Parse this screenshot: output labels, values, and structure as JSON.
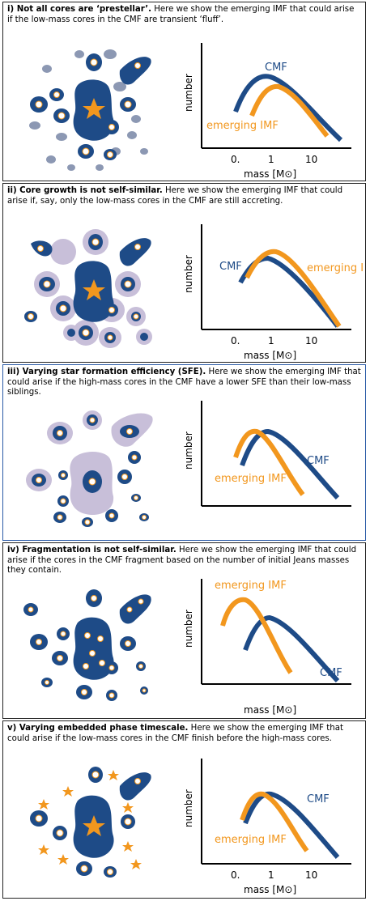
{
  "colors": {
    "blue": "#1e4b87",
    "orange": "#f2971e",
    "grey": "#8c98b3",
    "lilac": "#c8bfd9",
    "border": "#222222",
    "border_blue": "#2a5aa6"
  },
  "axes": {
    "x_label": "mass [M⊙]",
    "y_label": "number",
    "ticks": [
      "0.",
      "1",
      "10"
    ]
  },
  "panels": [
    {
      "title": "i) Not all cores are ‘prestellar’.",
      "body": " Here we show the emerging IMF that could arise if the low-mass cores in the CMF are transient ‘fluff’.",
      "label_cmf": "CMF",
      "label_imf": "emerging IMF"
    },
    {
      "title": "ii) Core growth is not self-similar.",
      "body": " Here we show the emerging IMF that could arise if, say, only the low-mass cores in the CMF are still accreting.",
      "label_cmf": "CMF",
      "label_imf": "emerging IMF"
    },
    {
      "title": "iii) Varying star formation efficiency (SFE).",
      "body": " Here we show the emerging IMF that could arise if the high-mass cores in the CMF have a lower SFE than their low-mass siblings.",
      "label_cmf": "CMF",
      "label_imf": "emerging IMF"
    },
    {
      "title": "iv) Fragmentation is not self-similar.",
      "body": " Here we show the emerging IMF that could arise if the cores in the CMF fragment based on the number of initial Jeans masses they contain.",
      "label_cmf": "CMF",
      "label_imf": "emerging IMF"
    },
    {
      "title": "v) Varying embedded phase timescale.",
      "body": " Here we show the emerging IMF that could arise if the low-mass cores in the CMF finish before the high-mass cores.",
      "label_cmf": "CMF",
      "label_imf": "emerging IMF"
    }
  ]
}
